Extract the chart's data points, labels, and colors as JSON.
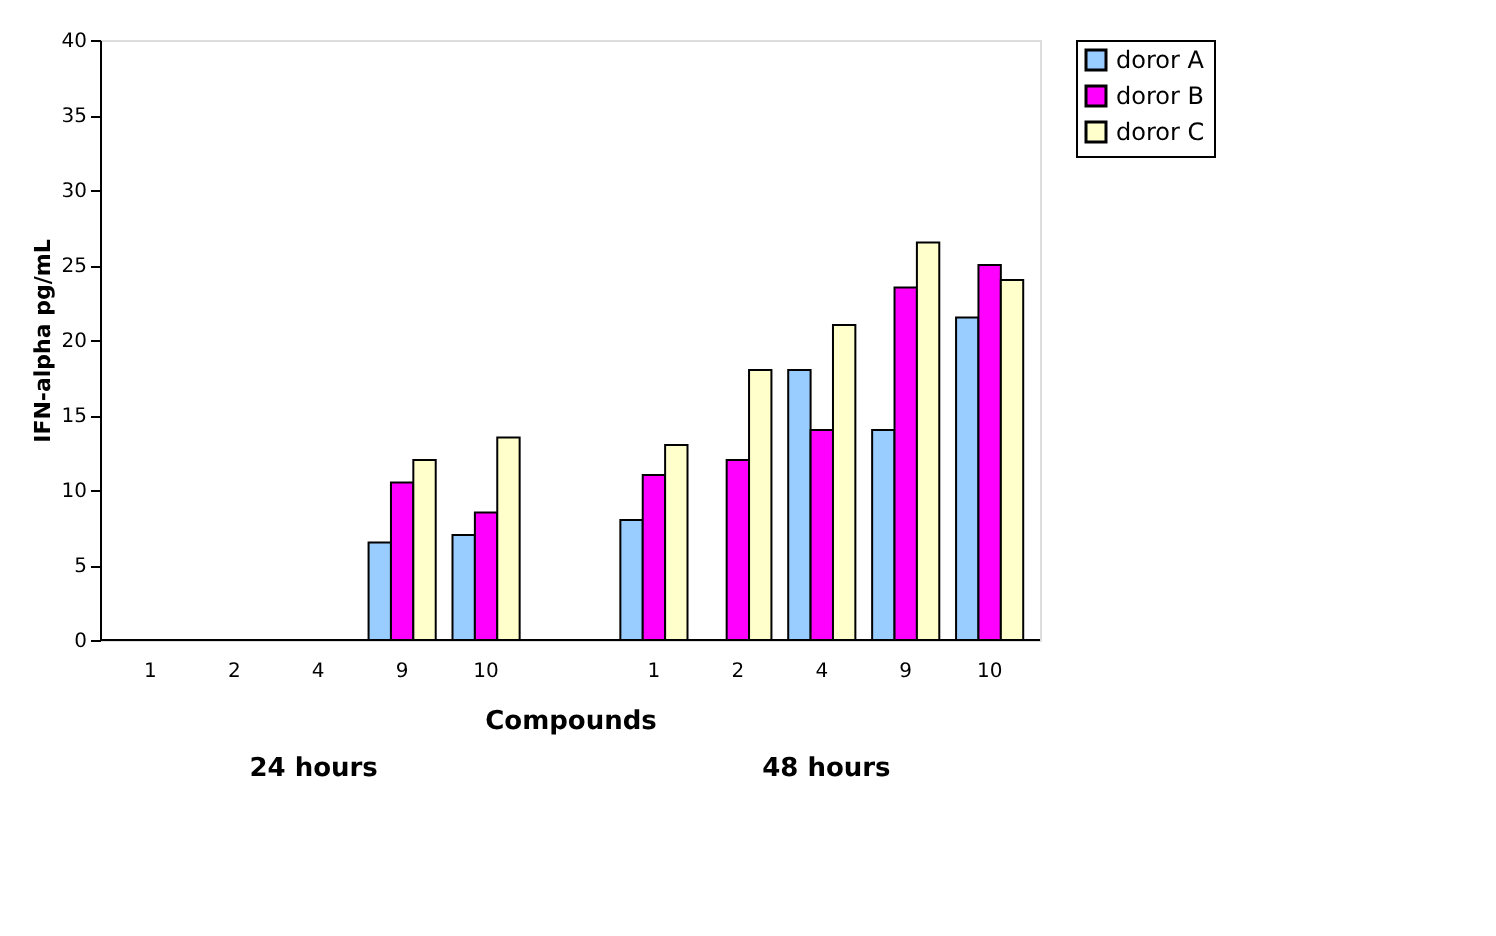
{
  "chart_data": {
    "type": "bar",
    "xlabel": "Compounds",
    "ylabel": "IFN-alpha pg/mL",
    "categories": [
      "1",
      "2",
      "4",
      "9",
      "10",
      null,
      "1",
      "2",
      "4",
      "9",
      "10"
    ],
    "series": [
      {
        "name": "doror A",
        "color": "#99ccff",
        "values": [
          null,
          null,
          null,
          6.5,
          7,
          null,
          8,
          null,
          18,
          14,
          21.5
        ]
      },
      {
        "name": "doror B",
        "color": "#ff00ff",
        "values": [
          null,
          null,
          null,
          10.5,
          8.5,
          null,
          11,
          12,
          14,
          23.5,
          25
        ]
      },
      {
        "name": "doror C",
        "color": "#ffffcc",
        "values": [
          null,
          null,
          null,
          12,
          13.5,
          null,
          13,
          18,
          21,
          26.5,
          24
        ]
      }
    ],
    "ylim": [
      0,
      40
    ],
    "yticks": [
      0,
      5,
      10,
      15,
      20,
      25,
      30,
      35,
      40
    ],
    "grid": false,
    "legend": "right",
    "annotations": [
      "24 hours",
      "48 hours"
    ]
  }
}
